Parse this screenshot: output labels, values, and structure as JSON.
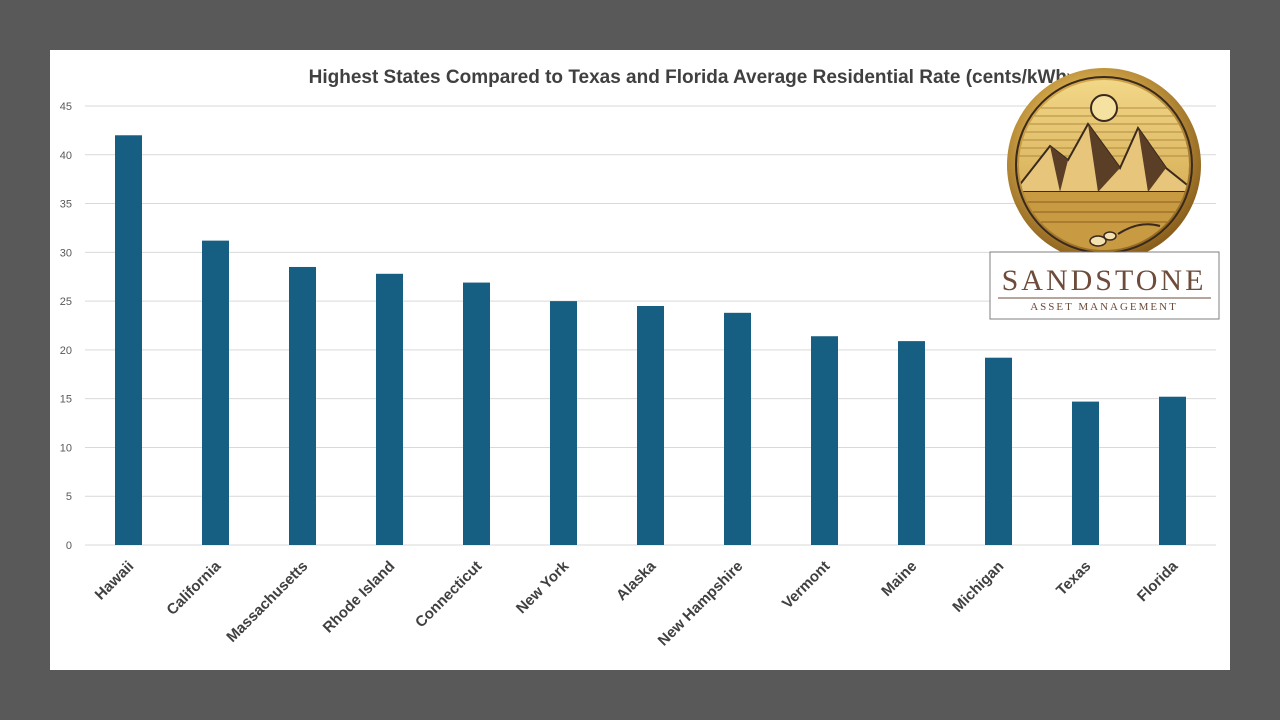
{
  "chart_data": {
    "type": "bar",
    "title": "Highest States  Compared to Texas and Florida Average Residential Rate (cents/kWh",
    "title_suffix": ")",
    "xlabel": "",
    "ylabel": "",
    "ylim": [
      0,
      45
    ],
    "yticks": [
      0,
      5,
      10,
      15,
      20,
      25,
      30,
      35,
      40,
      45
    ],
    "grid": true,
    "legend": "none",
    "categories": [
      "Hawaii",
      "California",
      "Massachusetts",
      "Rhode Island",
      "Connecticut",
      "New York",
      "Alaska",
      "New Hampshire",
      "Vermont",
      "Maine",
      "Michigan",
      "Texas",
      "Florida"
    ],
    "series": [
      {
        "name": "Average Residential Rate",
        "values": [
          42.0,
          31.2,
          28.5,
          27.8,
          26.9,
          25.0,
          24.5,
          23.8,
          21.4,
          20.9,
          19.2,
          14.7,
          15.2
        ]
      }
    ]
  },
  "colors": {
    "bar": "#175f82",
    "background": "#595959",
    "panel": "#ffffff",
    "gold": "#d4a84a",
    "brown": "#6e4b3a"
  },
  "logo": {
    "name": "SANDSTONE",
    "subtitle": "ASSET MANAGEMENT"
  }
}
